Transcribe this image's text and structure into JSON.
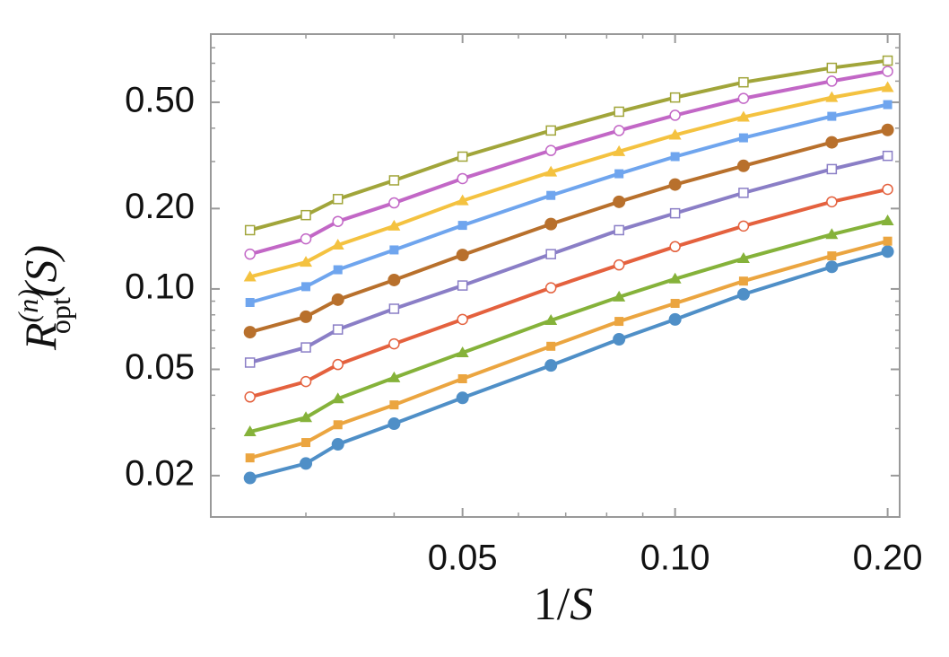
{
  "chart_data": {
    "type": "line",
    "xlabel": {
      "num": "1/",
      "var": "S"
    },
    "ylabel": {
      "base": "R",
      "sup": "(n)",
      "sub": "opt",
      "arg": "(S)"
    },
    "x": [
      0.025,
      0.03,
      0.0333,
      0.04,
      0.05,
      0.0667,
      0.0833,
      0.1,
      0.125,
      0.1667,
      0.2
    ],
    "xlim": [
      0.022,
      0.208
    ],
    "ylim": [
      0.014,
      0.9
    ],
    "xlog": true,
    "ylog": true,
    "xticks": [
      0.05,
      {
        "value": 0.1,
        "label": "0.10"
      },
      {
        "value": 0.2,
        "label": "0.20"
      }
    ],
    "yticks": [
      0.02,
      0.05,
      {
        "value": 0.1,
        "label": "0.10"
      },
      {
        "value": 0.2,
        "label": "0.20"
      },
      {
        "value": 0.5,
        "label": "0.50"
      }
    ],
    "xminorticks": [
      0.03,
      0.04,
      0.06,
      0.07,
      0.08,
      0.09
    ],
    "yminorticks": [
      0.03,
      0.04,
      0.06,
      0.07,
      0.08,
      0.09,
      0.3,
      0.4,
      0.6,
      0.7,
      0.8
    ],
    "series": [
      {
        "color": "#4f8fc7",
        "marker": "circle",
        "values": [
          0.0196,
          0.0222,
          0.0262,
          0.0313,
          0.0391,
          0.0517,
          0.0648,
          0.0769,
          0.0955,
          0.121,
          0.138
        ]
      },
      {
        "color": "#eba540",
        "marker": "square",
        "values": [
          0.0233,
          0.0266,
          0.031,
          0.0368,
          0.0461,
          0.061,
          0.0756,
          0.0883,
          0.107,
          0.133,
          0.151
        ]
      },
      {
        "color": "#85b23a",
        "marker": "triangle",
        "values": [
          0.0292,
          0.033,
          0.0388,
          0.0465,
          0.0577,
          0.0762,
          0.0933,
          0.109,
          0.13,
          0.16,
          0.18
        ]
      },
      {
        "color": "#e4613e",
        "marker": "open-circle",
        "values": [
          0.0394,
          0.045,
          0.0521,
          0.0623,
          0.0769,
          0.101,
          0.123,
          0.144,
          0.172,
          0.212,
          0.236
        ]
      },
      {
        "color": "#8a7ec6",
        "marker": "open-square",
        "values": [
          0.053,
          0.0604,
          0.0705,
          0.0843,
          0.103,
          0.135,
          0.166,
          0.192,
          0.229,
          0.281,
          0.315
        ]
      },
      {
        "color": "#b8702c",
        "marker": "circle",
        "values": [
          0.0689,
          0.0787,
          0.0912,
          0.108,
          0.134,
          0.175,
          0.212,
          0.246,
          0.289,
          0.354,
          0.394
        ]
      },
      {
        "color": "#6fa5ee",
        "marker": "square",
        "values": [
          0.089,
          0.102,
          0.118,
          0.14,
          0.173,
          0.224,
          0.27,
          0.313,
          0.368,
          0.443,
          0.49
        ]
      },
      {
        "color": "#f4c240",
        "marker": "triangle",
        "values": [
          0.111,
          0.126,
          0.146,
          0.172,
          0.214,
          0.274,
          0.327,
          0.377,
          0.44,
          0.521,
          0.568
        ]
      },
      {
        "color": "#c267c6",
        "marker": "open-circle",
        "values": [
          0.135,
          0.154,
          0.179,
          0.21,
          0.259,
          0.33,
          0.392,
          0.447,
          0.517,
          0.6,
          0.653
        ]
      },
      {
        "color": "#a1a53a",
        "marker": "open-square",
        "values": [
          0.166,
          0.189,
          0.217,
          0.255,
          0.313,
          0.392,
          0.461,
          0.521,
          0.594,
          0.673,
          0.716
        ]
      }
    ]
  }
}
